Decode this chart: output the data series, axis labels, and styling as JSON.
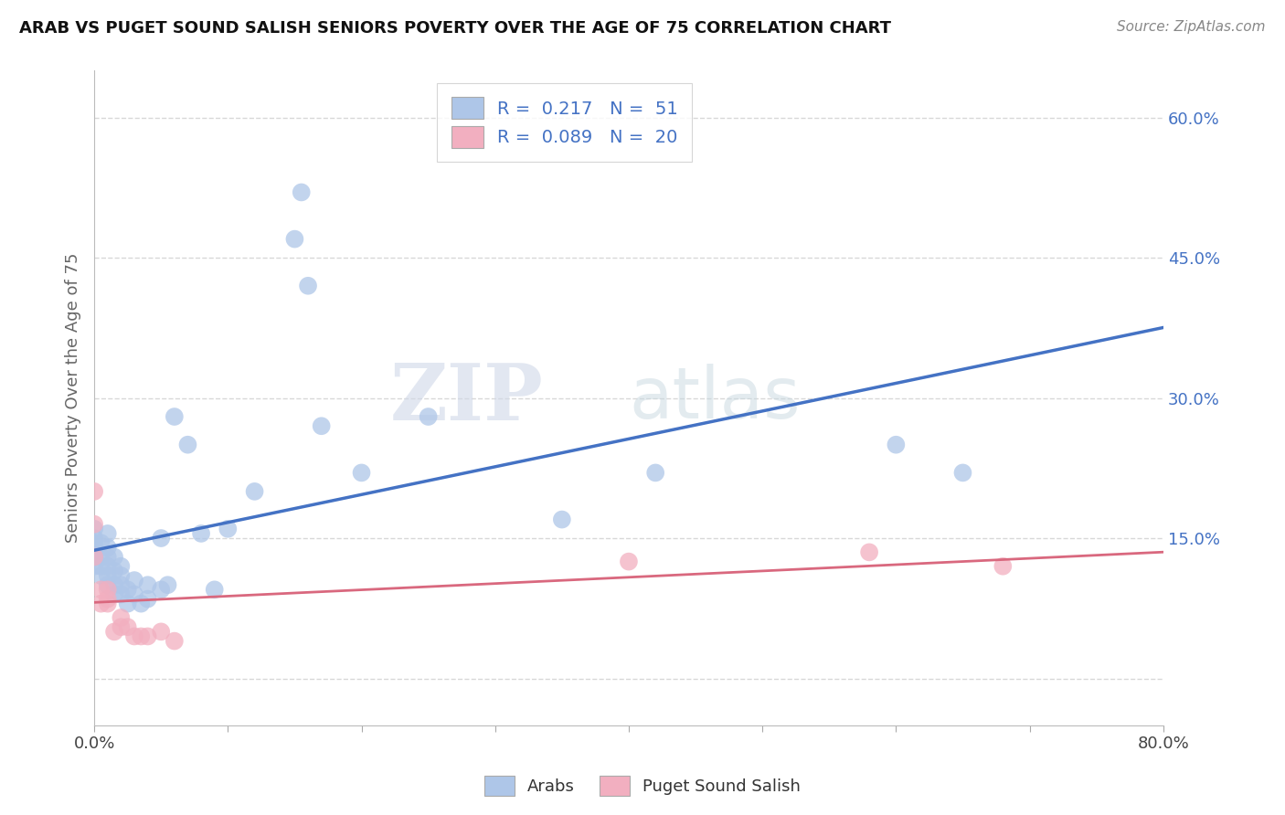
{
  "title": "ARAB VS PUGET SOUND SALISH SENIORS POVERTY OVER THE AGE OF 75 CORRELATION CHART",
  "source": "Source: ZipAtlas.com",
  "ylabel": "Seniors Poverty Over the Age of 75",
  "xlim": [
    0.0,
    0.8
  ],
  "ylim": [
    -0.05,
    0.65
  ],
  "xticks": [
    0.0,
    0.1,
    0.2,
    0.3,
    0.4,
    0.5,
    0.6,
    0.7,
    0.8
  ],
  "xticklabels": [
    "0.0%",
    "",
    "",
    "",
    "",
    "",
    "",
    "",
    "80.0%"
  ],
  "ytick_positions": [
    0.0,
    0.15,
    0.3,
    0.45,
    0.6
  ],
  "ytick_labels": [
    "",
    "15.0%",
    "30.0%",
    "45.0%",
    "60.0%"
  ],
  "arab_R": 0.217,
  "arab_N": 51,
  "salish_R": 0.089,
  "salish_N": 20,
  "arab_color": "#aec6e8",
  "arab_line_color": "#4472c4",
  "salish_color": "#f2afc0",
  "salish_line_color": "#d9687e",
  "watermark_zip": "ZIP",
  "watermark_atlas": "atlas",
  "arab_x": [
    0.0,
    0.0,
    0.0,
    0.0,
    0.0,
    0.0,
    0.0,
    0.005,
    0.005,
    0.005,
    0.005,
    0.01,
    0.01,
    0.01,
    0.01,
    0.01,
    0.01,
    0.015,
    0.015,
    0.015,
    0.015,
    0.02,
    0.02,
    0.02,
    0.02,
    0.025,
    0.025,
    0.03,
    0.03,
    0.035,
    0.04,
    0.04,
    0.05,
    0.05,
    0.055,
    0.06,
    0.07,
    0.08,
    0.09,
    0.1,
    0.12,
    0.15,
    0.155,
    0.16,
    0.17,
    0.2,
    0.25,
    0.35,
    0.42,
    0.6,
    0.65
  ],
  "arab_y": [
    0.12,
    0.13,
    0.13,
    0.14,
    0.145,
    0.15,
    0.16,
    0.11,
    0.12,
    0.13,
    0.145,
    0.1,
    0.11,
    0.12,
    0.13,
    0.14,
    0.155,
    0.09,
    0.1,
    0.115,
    0.13,
    0.09,
    0.1,
    0.11,
    0.12,
    0.08,
    0.095,
    0.09,
    0.105,
    0.08,
    0.085,
    0.1,
    0.095,
    0.15,
    0.1,
    0.28,
    0.25,
    0.155,
    0.095,
    0.16,
    0.2,
    0.47,
    0.52,
    0.42,
    0.27,
    0.22,
    0.28,
    0.17,
    0.22,
    0.25,
    0.22
  ],
  "salish_x": [
    0.0,
    0.0,
    0.0,
    0.005,
    0.005,
    0.01,
    0.01,
    0.01,
    0.015,
    0.02,
    0.02,
    0.025,
    0.03,
    0.035,
    0.04,
    0.05,
    0.06,
    0.4,
    0.58,
    0.68
  ],
  "salish_y": [
    0.13,
    0.165,
    0.2,
    0.08,
    0.095,
    0.08,
    0.085,
    0.095,
    0.05,
    0.055,
    0.065,
    0.055,
    0.045,
    0.045,
    0.045,
    0.05,
    0.04,
    0.125,
    0.135,
    0.12
  ],
  "background_color": "#ffffff",
  "grid_color": "#d8d8d8"
}
